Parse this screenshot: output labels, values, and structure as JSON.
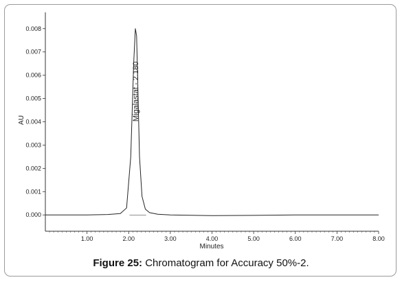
{
  "chart_data": {
    "type": "line",
    "xlabel": "Minutes",
    "ylabel": "AU",
    "xlim": [
      0.0,
      8.0
    ],
    "ylim": [
      -0.0007,
      0.0087
    ],
    "x_ticks": [
      "1.00",
      "2.00",
      "3.00",
      "4.00",
      "5.00",
      "6.00",
      "7.00",
      "8.00"
    ],
    "y_ticks": [
      "0.000",
      "0.001",
      "0.002",
      "0.003",
      "0.004",
      "0.005",
      "0.006",
      "0.007",
      "0.008"
    ],
    "series": [
      {
        "x": [
          0.0,
          1.0,
          1.5,
          1.8,
          1.95,
          2.05,
          2.12,
          2.16,
          2.19,
          2.22,
          2.26,
          2.32,
          2.4,
          2.5,
          2.7,
          3.0,
          4.0,
          5.0,
          6.0,
          7.0,
          8.0
        ],
        "values": [
          0.0,
          0.0,
          2e-05,
          6e-05,
          0.0003,
          0.0025,
          0.0065,
          0.008,
          0.0077,
          0.0055,
          0.0025,
          0.0008,
          0.00025,
          0.0001,
          3e-05,
          0.0,
          -3e-05,
          -2e-05,
          0.0,
          0.0,
          0.0
        ]
      }
    ],
    "annotations": [
      {
        "text": "Migalastat - 2.180",
        "x": 2.18,
        "orientation": "vertical"
      }
    ],
    "grid": false
  },
  "caption": {
    "label": "Figure 25:",
    "text": "Chromatogram for Accuracy 50%-2."
  },
  "colors": {
    "line": "#222222",
    "axis": "#333333",
    "frame": "#9a9a9a"
  }
}
